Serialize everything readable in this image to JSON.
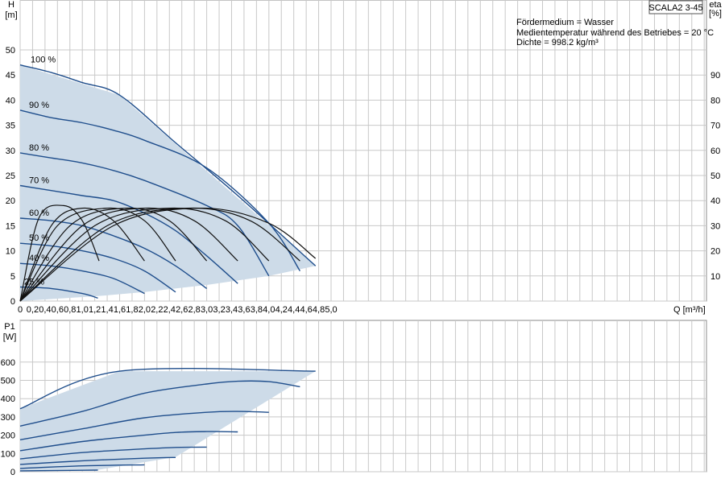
{
  "title": "SCALA2 3-45",
  "info_lines": [
    "Fördermedium = Wasser",
    "Medientemperatur während des Betriebes = 20 °C",
    "Dichte = 998.2 kg/m³"
  ],
  "chart_data": [
    {
      "type": "line",
      "name": "head",
      "ylabel_lines": [
        "H",
        "[m]"
      ],
      "y2label_lines": [
        "eta",
        "[%]"
      ],
      "xlabel": "Q [m³/h]",
      "xlim": [
        0,
        5.5
      ],
      "ylim": [
        0,
        50
      ],
      "y2lim": [
        0,
        100
      ],
      "xticks": [
        "0",
        "0,2",
        "0,4",
        "0,6",
        "0,8",
        "1,0",
        "1,2",
        "1,4",
        "1,6",
        "1,8",
        "2,0",
        "2,2",
        "2,4",
        "2,6",
        "2,8",
        "3,0",
        "3,2",
        "3,4",
        "3,6",
        "3,8",
        "4,0",
        "4,2",
        "4,4",
        "4,6",
        "4,8",
        "5,0"
      ],
      "yticks": [
        "0",
        "5",
        "10",
        "15",
        "20",
        "25",
        "30",
        "35",
        "40",
        "45",
        "50"
      ],
      "y2ticks": [
        "10",
        "20",
        "30",
        "40",
        "50",
        "60",
        "70",
        "80",
        "90"
      ],
      "grid": true,
      "colors": {
        "curve": "#1f4e8c",
        "fill": "#cddbe8",
        "eta": "#111111",
        "grid": "#c8c8c8"
      },
      "envelope": [
        [
          0,
          47
        ],
        [
          1.6,
          41
        ],
        [
          4.75,
          7
        ],
        [
          4.0,
          5
        ],
        [
          3.0,
          3.2
        ],
        [
          2.0,
          1.8
        ],
        [
          1.25,
          1.0
        ],
        [
          0,
          0
        ]
      ],
      "series": [
        {
          "name": "100 %",
          "x": [
            0,
            0.5,
            1.0,
            1.6,
            2.5,
            3.5,
            4.75
          ],
          "y": [
            47,
            45.5,
            43.5,
            41,
            31.5,
            21,
            7
          ]
        },
        {
          "name": "90 %",
          "x": [
            0,
            0.5,
            1.0,
            1.5,
            2.0,
            3.0,
            4.0,
            4.5
          ],
          "y": [
            38,
            36.5,
            35.5,
            34,
            32,
            26.5,
            15.5,
            6
          ]
        },
        {
          "name": "80 %",
          "x": [
            0,
            0.5,
            1.0,
            1.5,
            2.0,
            3.0,
            3.5,
            4.0
          ],
          "y": [
            29.5,
            28.5,
            27.5,
            26,
            24,
            19,
            15,
            5
          ]
        },
        {
          "name": "70 %",
          "x": [
            0,
            0.5,
            1.0,
            1.5,
            2.0,
            2.5,
            3.0,
            3.5
          ],
          "y": [
            23,
            22,
            21,
            20,
            17.5,
            14,
            9,
            3.5
          ]
        },
        {
          "name": "60 %",
          "x": [
            0,
            0.5,
            1.0,
            1.5,
            2.0,
            2.5,
            3.0
          ],
          "y": [
            16.5,
            16,
            15,
            13,
            10.5,
            7,
            2.5
          ]
        },
        {
          "name": "50 %",
          "x": [
            0,
            0.5,
            1.0,
            1.5,
            2.0,
            2.5
          ],
          "y": [
            11.5,
            11,
            10,
            8.5,
            6,
            1.8
          ]
        },
        {
          "name": "40 %",
          "x": [
            0,
            0.5,
            1.0,
            1.5,
            2.0
          ],
          "y": [
            7.5,
            7,
            6,
            4.5,
            1.5
          ]
        },
        {
          "name": "25 %",
          "x": [
            0,
            0.5,
            1.0,
            1.25
          ],
          "y": [
            2.8,
            2.5,
            1.5,
            0.6
          ]
        }
      ],
      "eta_series": [
        {
          "x": [
            0,
            0.3,
            0.7,
            1.0,
            1.27
          ],
          "y2": [
            0,
            33,
            38,
            32,
            16
          ]
        },
        {
          "x": [
            0,
            0.5,
            1.0,
            1.5,
            2.0
          ],
          "y2": [
            0,
            30,
            37,
            32,
            16
          ]
        },
        {
          "x": [
            0,
            0.6,
            1.4,
            2.0,
            2.5
          ],
          "y2": [
            0,
            30,
            37,
            32,
            16
          ]
        },
        {
          "x": [
            0,
            0.8,
            1.7,
            2.4,
            3.0
          ],
          "y2": [
            0,
            30,
            37,
            32,
            16
          ]
        },
        {
          "x": [
            0,
            1.0,
            2.0,
            2.8,
            3.5
          ],
          "y2": [
            0,
            30,
            37,
            32,
            16
          ]
        },
        {
          "x": [
            0,
            1.2,
            2.4,
            3.3,
            4.0
          ],
          "y2": [
            0,
            30,
            37,
            32,
            16
          ]
        },
        {
          "x": [
            0,
            1.4,
            2.7,
            3.7,
            4.5
          ],
          "y2": [
            0,
            30,
            37,
            32,
            16
          ]
        },
        {
          "x": [
            0,
            1.5,
            2.9,
            4.0,
            4.75
          ],
          "y2": [
            0,
            30,
            37,
            31,
            17
          ]
        }
      ]
    },
    {
      "type": "line",
      "name": "power",
      "ylabel_lines": [
        "P1",
        "[W]"
      ],
      "xlim": [
        0,
        5.5
      ],
      "ylim": [
        0,
        650
      ],
      "xticks": [],
      "yticks": [
        "0",
        "100",
        "200",
        "300",
        "400",
        "500",
        "600"
      ],
      "grid": true,
      "colors": {
        "curve": "#1f4e8c",
        "fill": "#cddbe8",
        "grid": "#c8c8c8"
      },
      "envelope": [
        [
          0,
          345
        ],
        [
          1.6,
          550
        ],
        [
          4.75,
          550
        ],
        [
          2.5,
          80
        ],
        [
          1.25,
          10
        ],
        [
          0,
          5
        ]
      ],
      "series": [
        {
          "name": "100 %",
          "x": [
            0,
            1.6,
            4.75
          ],
          "y": [
            345,
            550,
            550
          ]
        },
        {
          "name": "90 %",
          "x": [
            0,
            1.0,
            2.0,
            3.0,
            3.5,
            4.0,
            4.5
          ],
          "y": [
            250,
            330,
            430,
            480,
            495,
            493,
            465
          ]
        },
        {
          "name": "80 %",
          "x": [
            0,
            1.0,
            2.0,
            3.0,
            3.5,
            4.0
          ],
          "y": [
            175,
            235,
            295,
            325,
            330,
            325
          ]
        },
        {
          "name": "70 %",
          "x": [
            0,
            1.0,
            2.0,
            2.5,
            3.0,
            3.5
          ],
          "y": [
            115,
            165,
            200,
            215,
            220,
            218
          ]
        },
        {
          "name": "60 %",
          "x": [
            0,
            1.0,
            2.0,
            2.5,
            3.0
          ],
          "y": [
            70,
            105,
            125,
            133,
            135
          ]
        },
        {
          "name": "50 %",
          "x": [
            0,
            1.0,
            2.0,
            2.5
          ],
          "y": [
            40,
            60,
            74,
            78
          ]
        },
        {
          "name": "40 %",
          "x": [
            0,
            1.0,
            2.0
          ],
          "y": [
            18,
            32,
            38
          ]
        },
        {
          "name": "25 %",
          "x": [
            0,
            1.0,
            1.25
          ],
          "y": [
            5,
            8,
            9
          ]
        }
      ]
    }
  ]
}
